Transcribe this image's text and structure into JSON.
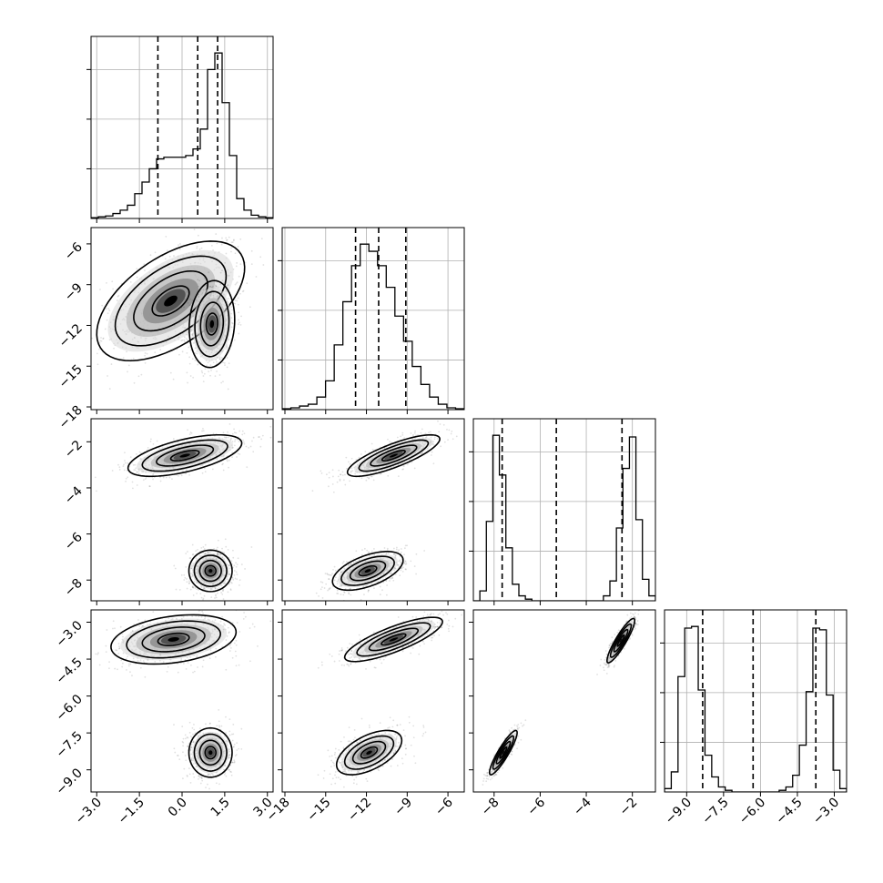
{
  "chart_data": {
    "type": "corner",
    "parameters": [
      {
        "id": "p1",
        "ticks": [
          -3.0,
          -1.5,
          0.0,
          1.5,
          3.0
        ],
        "tick_labels": [
          "−3.0",
          "−1.5",
          "0.0",
          "1.5",
          "3.0"
        ],
        "range": [
          -3.2,
          3.2
        ],
        "quantiles": [
          -0.85,
          0.55,
          1.25
        ]
      },
      {
        "id": "p2",
        "ticks": [
          -18,
          -15,
          -12,
          -9,
          -6
        ],
        "tick_labels": [
          "−18",
          "−15",
          "−12",
          "−9",
          "−6"
        ],
        "range": [
          -18.2,
          -4.8
        ],
        "quantiles": [
          -12.8,
          -11.1,
          -9.1
        ]
      },
      {
        "id": "p3",
        "ticks": [
          -8,
          -6,
          -4,
          -2
        ],
        "tick_labels": [
          "−8",
          "−6",
          "−4",
          "−2"
        ],
        "range": [
          -8.9,
          -1.0
        ],
        "quantiles": [
          -7.65,
          -5.3,
          -2.45
        ]
      },
      {
        "id": "p4",
        "ticks": [
          -9.0,
          -7.5,
          -6.0,
          -4.5,
          -3.0
        ],
        "tick_labels": [
          "−9.0",
          "−7.5",
          "−6.0",
          "−4.5",
          "−3.0"
        ],
        "range": [
          -9.9,
          -2.5
        ],
        "quantiles": [
          -8.35,
          -6.3,
          -3.75
        ]
      }
    ],
    "histograms": [
      {
        "param": "p1",
        "bin_edges_range": [
          -3.2,
          3.2
        ],
        "counts": [
          0.5,
          1,
          1.5,
          3,
          5,
          8,
          15,
          22,
          30,
          36,
          37,
          37,
          37,
          38,
          42,
          54,
          90,
          100,
          70,
          38,
          12,
          5,
          2,
          1,
          0.5
        ]
      },
      {
        "param": "p2",
        "bin_edges_range": [
          -18.2,
          -4.8
        ],
        "counts": [
          0.5,
          1,
          2,
          3,
          7,
          16,
          36,
          60,
          80,
          92,
          88,
          80,
          68,
          52,
          38,
          24,
          14,
          7,
          3,
          1,
          0.5
        ]
      },
      {
        "param": "p3",
        "bin_edges_range": [
          -8.9,
          -1.0
        ],
        "counts": [
          0,
          6,
          48,
          100,
          76,
          32,
          10,
          3,
          1,
          0,
          0,
          0,
          0,
          0,
          0,
          0,
          0,
          0,
          0,
          0,
          3,
          12,
          44,
          80,
          99,
          49,
          13,
          3
        ]
      },
      {
        "param": "p4",
        "bin_edges_range": [
          -9.9,
          -2.5
        ],
        "counts": [
          2,
          12,
          69,
          98,
          99,
          61,
          22,
          9,
          3,
          1,
          0,
          0,
          0,
          0,
          0,
          0,
          0,
          1,
          3,
          10,
          28,
          60,
          98,
          97,
          58,
          13,
          2
        ]
      }
    ],
    "pairs": [
      {
        "x": "p1",
        "y": "p2",
        "modes": [
          {
            "cx": -0.4,
            "cy": -10.2,
            "sx": 1.3,
            "sy": 2.2,
            "rho": 0.55
          },
          {
            "cx": 1.05,
            "cy": -11.9,
            "sx": 0.4,
            "sy": 1.6,
            "rho": 0.1
          }
        ]
      },
      {
        "x": "p1",
        "y": "p3",
        "modes": [
          {
            "cx": 0.1,
            "cy": -2.6,
            "sx": 1.0,
            "sy": 0.45,
            "rho": 0.6
          },
          {
            "cx": 1.0,
            "cy": -7.6,
            "sx": 0.38,
            "sy": 0.45,
            "rho": 0.0
          }
        ]
      },
      {
        "x": "p2",
        "y": "p3",
        "modes": [
          {
            "cx": -10.0,
            "cy": -2.6,
            "sx": 1.7,
            "sy": 0.45,
            "rho": 0.8
          },
          {
            "cx": -11.9,
            "cy": -7.6,
            "sx": 1.3,
            "sy": 0.42,
            "rho": 0.55
          }
        ]
      },
      {
        "x": "p1",
        "y": "p4",
        "modes": [
          {
            "cx": -0.3,
            "cy": -3.7,
            "sx": 1.1,
            "sy": 0.5,
            "rho": 0.3
          },
          {
            "cx": 1.0,
            "cy": -8.3,
            "sx": 0.38,
            "sy": 0.5,
            "rho": 0.0
          }
        ]
      },
      {
        "x": "p2",
        "y": "p4",
        "modes": [
          {
            "cx": -10.0,
            "cy": -3.7,
            "sx": 1.8,
            "sy": 0.45,
            "rho": 0.8
          },
          {
            "cx": -11.8,
            "cy": -8.3,
            "sx": 1.2,
            "sy": 0.45,
            "rho": 0.55
          }
        ]
      },
      {
        "x": "p3",
        "y": "p4",
        "modes": [
          {
            "cx": -2.5,
            "cy": -3.75,
            "sx": 0.3,
            "sy": 0.45,
            "rho": 0.9
          },
          {
            "cx": -7.6,
            "cy": -8.3,
            "sx": 0.3,
            "sy": 0.45,
            "rho": 0.9
          }
        ]
      }
    ],
    "contour_levels_sigma": [
      0.5,
      1.0,
      1.5,
      2.0
    ],
    "grid": true
  }
}
